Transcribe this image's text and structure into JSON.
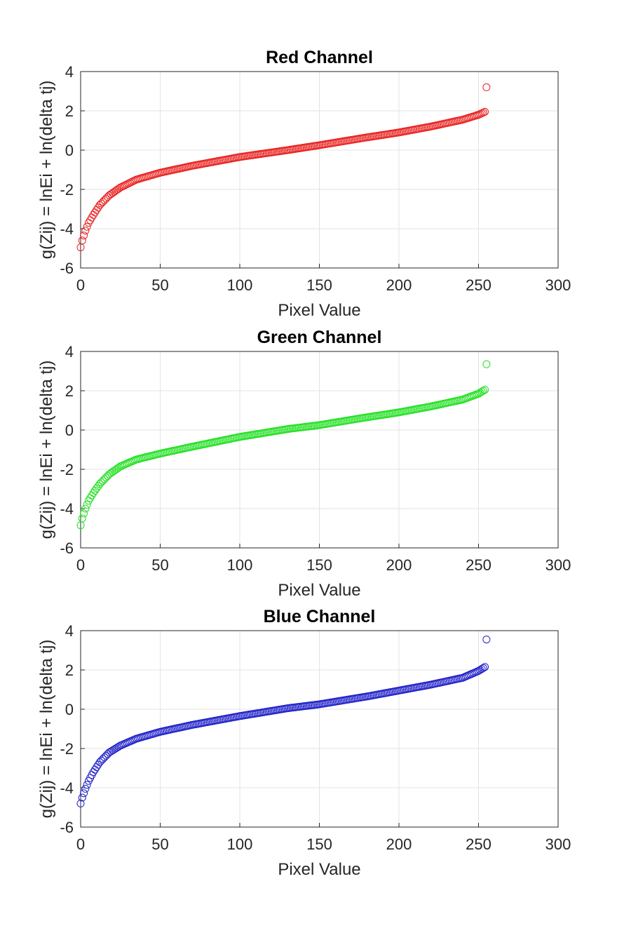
{
  "chart_data": [
    {
      "type": "scatter",
      "title": "Red Channel",
      "xlabel": "Pixel Value",
      "ylabel": "g(Zij) = lnEi + ln(delta tj)",
      "xlim": [
        0,
        300
      ],
      "ylim": [
        -6,
        4
      ],
      "xticks": [
        "0",
        "50",
        "100",
        "150",
        "200",
        "250",
        "300"
      ],
      "yticks": [
        "-6",
        "-4",
        "-2",
        "0",
        "2",
        "4"
      ],
      "grid": true,
      "marker": "open-circle",
      "color": "#e8211f",
      "curve_points": [
        {
          "x": 0,
          "y": -4.95
        },
        {
          "x": 1,
          "y": -4.6
        },
        {
          "x": 3,
          "y": -4.1
        },
        {
          "x": 5,
          "y": -3.7
        },
        {
          "x": 8,
          "y": -3.3
        },
        {
          "x": 12,
          "y": -2.8
        },
        {
          "x": 18,
          "y": -2.3
        },
        {
          "x": 25,
          "y": -1.9
        },
        {
          "x": 35,
          "y": -1.5
        },
        {
          "x": 50,
          "y": -1.15
        },
        {
          "x": 70,
          "y": -0.8
        },
        {
          "x": 100,
          "y": -0.35
        },
        {
          "x": 130,
          "y": 0.0
        },
        {
          "x": 150,
          "y": 0.25
        },
        {
          "x": 180,
          "y": 0.65
        },
        {
          "x": 200,
          "y": 0.9
        },
        {
          "x": 220,
          "y": 1.2
        },
        {
          "x": 240,
          "y": 1.55
        },
        {
          "x": 250,
          "y": 1.8
        },
        {
          "x": 254,
          "y": 1.95
        }
      ],
      "outlier": {
        "x": 255,
        "y": 3.2
      }
    },
    {
      "type": "scatter",
      "title": "Green Channel",
      "xlabel": "Pixel Value",
      "ylabel": "g(Zij) = lnEi + ln(delta tj)",
      "xlim": [
        0,
        300
      ],
      "ylim": [
        -6,
        4
      ],
      "xticks": [
        "0",
        "50",
        "100",
        "150",
        "200",
        "250",
        "300"
      ],
      "yticks": [
        "-6",
        "-4",
        "-2",
        "0",
        "2",
        "4"
      ],
      "grid": true,
      "marker": "open-circle",
      "color": "#22e022",
      "curve_points": [
        {
          "x": 0,
          "y": -4.85
        },
        {
          "x": 1,
          "y": -4.5
        },
        {
          "x": 3,
          "y": -4.0
        },
        {
          "x": 5,
          "y": -3.6
        },
        {
          "x": 8,
          "y": -3.2
        },
        {
          "x": 12,
          "y": -2.75
        },
        {
          "x": 18,
          "y": -2.25
        },
        {
          "x": 25,
          "y": -1.85
        },
        {
          "x": 35,
          "y": -1.5
        },
        {
          "x": 50,
          "y": -1.2
        },
        {
          "x": 70,
          "y": -0.85
        },
        {
          "x": 100,
          "y": -0.35
        },
        {
          "x": 130,
          "y": 0.05
        },
        {
          "x": 150,
          "y": 0.25
        },
        {
          "x": 180,
          "y": 0.65
        },
        {
          "x": 200,
          "y": 0.9
        },
        {
          "x": 220,
          "y": 1.2
        },
        {
          "x": 240,
          "y": 1.55
        },
        {
          "x": 250,
          "y": 1.85
        },
        {
          "x": 254,
          "y": 2.05
        }
      ],
      "outlier": {
        "x": 255,
        "y": 3.35
      }
    },
    {
      "type": "scatter",
      "title": "Blue Channel",
      "xlabel": "Pixel Value",
      "ylabel": "g(Zij) = lnEi + ln(delta tj)",
      "xlim": [
        0,
        300
      ],
      "ylim": [
        -6,
        4
      ],
      "xticks": [
        "0",
        "50",
        "100",
        "150",
        "200",
        "250",
        "300"
      ],
      "yticks": [
        "-6",
        "-4",
        "-2",
        "0",
        "2",
        "4"
      ],
      "grid": true,
      "marker": "open-circle",
      "color": "#1f1fc8",
      "curve_points": [
        {
          "x": 0,
          "y": -4.8
        },
        {
          "x": 1,
          "y": -4.5
        },
        {
          "x": 3,
          "y": -4.05
        },
        {
          "x": 5,
          "y": -3.65
        },
        {
          "x": 8,
          "y": -3.2
        },
        {
          "x": 12,
          "y": -2.7
        },
        {
          "x": 18,
          "y": -2.2
        },
        {
          "x": 25,
          "y": -1.85
        },
        {
          "x": 35,
          "y": -1.5
        },
        {
          "x": 50,
          "y": -1.15
        },
        {
          "x": 70,
          "y": -0.8
        },
        {
          "x": 100,
          "y": -0.35
        },
        {
          "x": 130,
          "y": 0.05
        },
        {
          "x": 150,
          "y": 0.25
        },
        {
          "x": 180,
          "y": 0.65
        },
        {
          "x": 200,
          "y": 0.95
        },
        {
          "x": 220,
          "y": 1.25
        },
        {
          "x": 240,
          "y": 1.6
        },
        {
          "x": 250,
          "y": 1.95
        },
        {
          "x": 254,
          "y": 2.15
        }
      ],
      "outlier": {
        "x": 255,
        "y": 3.55
      }
    }
  ]
}
